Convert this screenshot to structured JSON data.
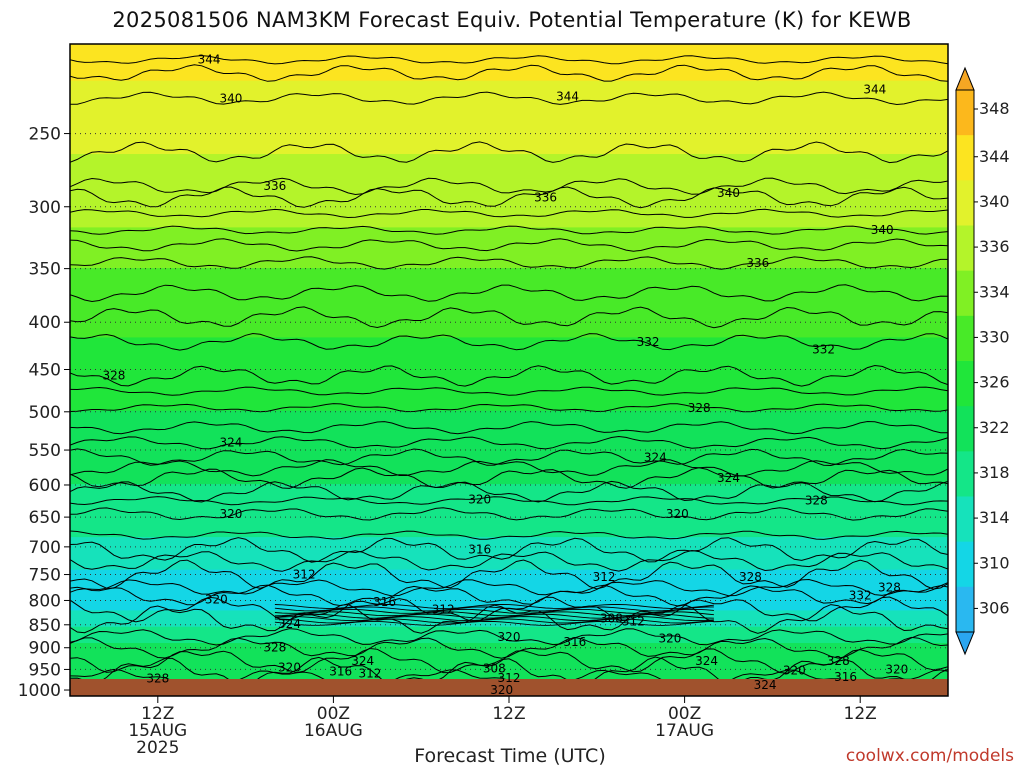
{
  "title": "2025081506 NAM3KM Forecast Equiv. Potential Temperature (K) for KEWB",
  "x_axis_label": "Forecast Time (UTC)",
  "credit": "coolwx.com/models",
  "chart_data": {
    "type": "heatmap",
    "title": "2025081506 NAM3KM Forecast Equiv. Potential Temperature (K) for KEWB",
    "xlabel": "Forecast Time (UTC)",
    "ylabel": "",
    "x_ticks": [
      {
        "hour": 6,
        "lines": [
          "12Z",
          "15AUG",
          "2025"
        ]
      },
      {
        "hour": 18,
        "lines": [
          "00Z",
          "16AUG"
        ]
      },
      {
        "hour": 30,
        "lines": [
          "12Z"
        ]
      },
      {
        "hour": 42,
        "lines": [
          "00Z",
          "17AUG"
        ]
      },
      {
        "hour": 54,
        "lines": [
          "12Z"
        ]
      }
    ],
    "xlim_hours": [
      0,
      60
    ],
    "y_scale": "log-pressure",
    "ylim_hPa": [
      1015,
      200
    ],
    "y_ticks": [
      250,
      300,
      350,
      400,
      450,
      500,
      550,
      600,
      650,
      700,
      750,
      800,
      850,
      900,
      950,
      1000
    ],
    "colorbar": {
      "ticks": [
        306,
        310,
        314,
        318,
        322,
        326,
        330,
        334,
        336,
        340,
        344,
        348
      ],
      "colors": [
        "#2ab8f0",
        "#14d6e6",
        "#16e2bb",
        "#14e688",
        "#12e25a",
        "#20e63a",
        "#48ea28",
        "#80f024",
        "#b4f42a",
        "#e2f22c",
        "#fce420",
        "#fcb81c"
      ],
      "extend": "both"
    },
    "profile": [
      {
        "hPa": 1000,
        "theta_e": 327
      },
      {
        "hPa": 950,
        "theta_e": 324
      },
      {
        "hPa": 900,
        "theta_e": 323
      },
      {
        "hPa": 850,
        "theta_e": 318
      },
      {
        "hPa": 800,
        "theta_e": 312
      },
      {
        "hPa": 750,
        "theta_e": 313
      },
      {
        "hPa": 700,
        "theta_e": 317
      },
      {
        "hPa": 650,
        "theta_e": 320
      },
      {
        "hPa": 600,
        "theta_e": 322
      },
      {
        "hPa": 550,
        "theta_e": 324
      },
      {
        "hPa": 500,
        "theta_e": 326
      },
      {
        "hPa": 450,
        "theta_e": 328
      },
      {
        "hPa": 400,
        "theta_e": 331
      },
      {
        "hPa": 350,
        "theta_e": 334
      },
      {
        "hPa": 300,
        "theta_e": 337
      },
      {
        "hPa": 250,
        "theta_e": 341
      },
      {
        "hPa": 200,
        "theta_e": 346
      }
    ],
    "contour_labels": [
      {
        "text": "344",
        "hour": 9.5,
        "hPa": 208
      },
      {
        "text": "340",
        "hour": 11.0,
        "hPa": 229
      },
      {
        "text": "344",
        "hour": 34.0,
        "hPa": 228
      },
      {
        "text": "344",
        "hour": 55.0,
        "hPa": 224
      },
      {
        "text": "336",
        "hour": 14.0,
        "hPa": 285
      },
      {
        "text": "336",
        "hour": 32.5,
        "hPa": 293
      },
      {
        "text": "340",
        "hour": 45.0,
        "hPa": 290
      },
      {
        "text": "340",
        "hour": 55.5,
        "hPa": 318
      },
      {
        "text": "336",
        "hour": 47.0,
        "hPa": 345
      },
      {
        "text": "332",
        "hour": 39.5,
        "hPa": 420
      },
      {
        "text": "332",
        "hour": 51.5,
        "hPa": 428
      },
      {
        "text": "328",
        "hour": 3.0,
        "hPa": 457
      },
      {
        "text": "328",
        "hour": 43.0,
        "hPa": 495
      },
      {
        "text": "324",
        "hour": 11.0,
        "hPa": 540
      },
      {
        "text": "324",
        "hour": 40.0,
        "hPa": 560
      },
      {
        "text": "324",
        "hour": 45.0,
        "hPa": 590
      },
      {
        "text": "328",
        "hour": 51.0,
        "hPa": 624
      },
      {
        "text": "320",
        "hour": 11.0,
        "hPa": 645
      },
      {
        "text": "320",
        "hour": 28.0,
        "hPa": 622
      },
      {
        "text": "320",
        "hour": 41.5,
        "hPa": 645
      },
      {
        "text": "316",
        "hour": 28.0,
        "hPa": 705
      },
      {
        "text": "312",
        "hour": 16.0,
        "hPa": 750
      },
      {
        "text": "312",
        "hour": 36.5,
        "hPa": 755
      },
      {
        "text": "328",
        "hour": 46.5,
        "hPa": 755
      },
      {
        "text": "328",
        "hour": 56.0,
        "hPa": 775
      },
      {
        "text": "332",
        "hour": 54.0,
        "hPa": 790
      },
      {
        "text": "320",
        "hour": 10.0,
        "hPa": 798
      },
      {
        "text": "316",
        "hour": 21.5,
        "hPa": 803
      },
      {
        "text": "312",
        "hour": 25.5,
        "hPa": 818
      },
      {
        "text": "308",
        "hour": 37.0,
        "hPa": 837
      },
      {
        "text": "312",
        "hour": 38.5,
        "hPa": 843
      },
      {
        "text": "324",
        "hour": 15.0,
        "hPa": 848
      },
      {
        "text": "320",
        "hour": 30.0,
        "hPa": 876
      },
      {
        "text": "316",
        "hour": 34.5,
        "hPa": 887
      },
      {
        "text": "320",
        "hour": 41.0,
        "hPa": 880
      },
      {
        "text": "328",
        "hour": 14.0,
        "hPa": 900
      },
      {
        "text": "324",
        "hour": 20.0,
        "hPa": 930
      },
      {
        "text": "324",
        "hour": 43.5,
        "hPa": 930
      },
      {
        "text": "328",
        "hour": 52.5,
        "hPa": 930
      },
      {
        "text": "320",
        "hour": 15.0,
        "hPa": 946
      },
      {
        "text": "316",
        "hour": 18.5,
        "hPa": 955
      },
      {
        "text": "312",
        "hour": 20.5,
        "hPa": 960
      },
      {
        "text": "308",
        "hour": 29.0,
        "hPa": 948
      },
      {
        "text": "312",
        "hour": 30.0,
        "hPa": 970
      },
      {
        "text": "320",
        "hour": 49.5,
        "hPa": 953
      },
      {
        "text": "320",
        "hour": 56.5,
        "hPa": 950
      },
      {
        "text": "316",
        "hour": 53.0,
        "hPa": 968
      },
      {
        "text": "328",
        "hour": 6.0,
        "hPa": 972
      },
      {
        "text": "324",
        "hour": 47.5,
        "hPa": 987
      },
      {
        "text": "320",
        "hour": 29.5,
        "hPa": 1000
      }
    ]
  }
}
